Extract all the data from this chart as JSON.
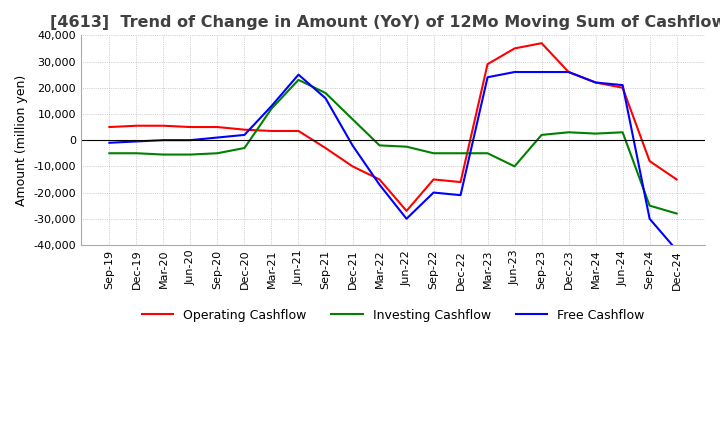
{
  "title": "[4613]  Trend of Change in Amount (YoY) of 12Mo Moving Sum of Cashflows",
  "ylabel": "Amount (million yen)",
  "ylim": [
    -40000,
    40000
  ],
  "yticks": [
    -40000,
    -30000,
    -20000,
    -10000,
    0,
    10000,
    20000,
    30000,
    40000
  ],
  "x_labels": [
    "Sep-19",
    "Dec-19",
    "Mar-20",
    "Jun-20",
    "Sep-20",
    "Dec-20",
    "Mar-21",
    "Jun-21",
    "Sep-21",
    "Dec-21",
    "Mar-22",
    "Jun-22",
    "Sep-22",
    "Dec-22",
    "Mar-23",
    "Jun-23",
    "Sep-23",
    "Dec-23",
    "Mar-24",
    "Jun-24",
    "Sep-24",
    "Dec-24"
  ],
  "operating": [
    5000,
    5500,
    5500,
    5000,
    5000,
    4000,
    3500,
    3500,
    -3000,
    -10000,
    -15000,
    -27000,
    -15000,
    -16000,
    29000,
    35000,
    37000,
    26000,
    22000,
    20000,
    -8000,
    -15000
  ],
  "investing": [
    -5000,
    -5000,
    -5500,
    -5500,
    -5000,
    -3000,
    12000,
    23000,
    18000,
    8000,
    -2000,
    -2500,
    -5000,
    -5000,
    -5000,
    -10000,
    2000,
    3000,
    2500,
    3000,
    -25000,
    -28000
  ],
  "free": [
    -1000,
    -500,
    0,
    0,
    1000,
    2000,
    13000,
    25000,
    16000,
    -2000,
    -17000,
    -30000,
    -20000,
    -21000,
    24000,
    26000,
    26000,
    26000,
    22000,
    21000,
    -30000,
    -42000
  ],
  "operating_color": "#ff0000",
  "investing_color": "#008000",
  "free_color": "#0000ff",
  "background_color": "#ffffff",
  "grid_color": "#aaaaaa",
  "title_color": "#404040",
  "title_fontsize": 11.5,
  "label_fontsize": 9,
  "tick_fontsize": 8,
  "legend_fontsize": 9,
  "line_width": 1.5
}
